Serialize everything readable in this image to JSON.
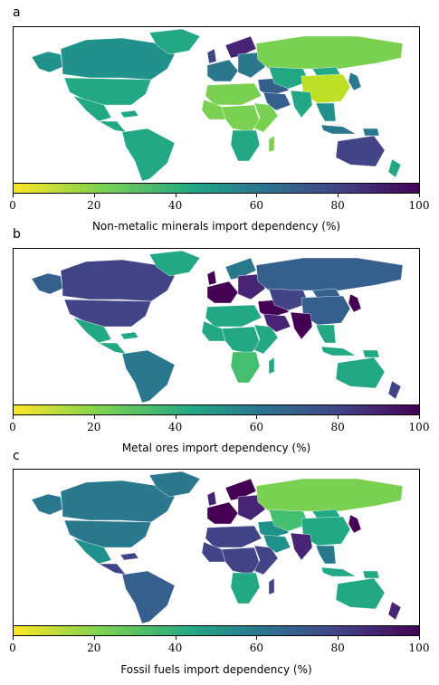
{
  "colors": {
    "v0": "#fde725",
    "v10": "#bddf26",
    "v20": "#7ad151",
    "v30": "#44bf70",
    "v40": "#22a884",
    "v50": "#21918c",
    "v60": "#2a788e",
    "v70": "#355f8d",
    "v80": "#414487",
    "v90": "#482475",
    "v100": "#440154"
  },
  "colorbar": {
    "ticks": [
      "0",
      "20",
      "40",
      "60",
      "80",
      "100"
    ],
    "range": [
      0,
      100
    ]
  },
  "panels": [
    {
      "letter": "a",
      "label": "Non-metalic minerals import dependency (%)",
      "regions": {
        "canada": "v50",
        "alaska": "v50",
        "greenland": "v40",
        "usa": "v40",
        "mexico": "v40",
        "central_america": "v40",
        "caribbean": "v40",
        "south_america": "v40",
        "western_europe": "v60",
        "uk": "v80",
        "scandinavia": "v90",
        "eastern_europe": "v60",
        "russia": "v20",
        "north_africa": "v20",
        "west_africa": "v20",
        "central_africa": "v20",
        "east_africa": "v20",
        "southern_africa": "v40",
        "madagascar": "v20",
        "middle_east": "v70",
        "arabia": "v70",
        "central_asia": "v40",
        "india": "v40",
        "china": "v10",
        "mongolia": "v40",
        "korea_japan": "v60",
        "se_asia": "v50",
        "indonesia": "v60",
        "png": "v60",
        "australia": "v80",
        "new_zealand": "v40"
      }
    },
    {
      "letter": "b",
      "label": "Metal ores import dependency (%)",
      "regions": {
        "canada": "v80",
        "alaska": "v70",
        "greenland": "v40",
        "usa": "v80",
        "mexico": "v40",
        "central_america": "v40",
        "caribbean": "v40",
        "south_america": "v60",
        "western_europe": "v100",
        "uk": "v100",
        "scandinavia": "v60",
        "eastern_europe": "v90",
        "russia": "v70",
        "north_africa": "v40",
        "west_africa": "v40",
        "central_africa": "v40",
        "east_africa": "v40",
        "southern_africa": "v30",
        "madagascar": "v40",
        "middle_east": "v100",
        "arabia": "v90",
        "central_asia": "v80",
        "india": "v100",
        "china": "v70",
        "mongolia": "v70",
        "korea_japan": "v100",
        "se_asia": "v40",
        "indonesia": "v40",
        "png": "v40",
        "australia": "v40",
        "new_zealand": "v80"
      }
    },
    {
      "letter": "c",
      "label": "Fossil fuels import dependency (%)",
      "regions": {
        "canada": "v60",
        "alaska": "v60",
        "greenland": "v60",
        "usa": "v60",
        "mexico": "v50",
        "central_america": "v80",
        "caribbean": "v80",
        "south_america": "v70",
        "western_europe": "v100",
        "uk": "v90",
        "scandinavia": "v100",
        "eastern_europe": "v90",
        "russia": "v20",
        "north_africa": "v80",
        "west_africa": "v80",
        "central_africa": "v80",
        "east_africa": "v80",
        "southern_africa": "v40",
        "madagascar": "v80",
        "middle_east": "v50",
        "arabia": "v50",
        "central_asia": "v30",
        "india": "v90",
        "china": "v40",
        "mongolia": "v40",
        "korea_japan": "v100",
        "se_asia": "v60",
        "indonesia": "v40",
        "png": "v40",
        "australia": "v40",
        "new_zealand": "v90"
      }
    }
  ]
}
